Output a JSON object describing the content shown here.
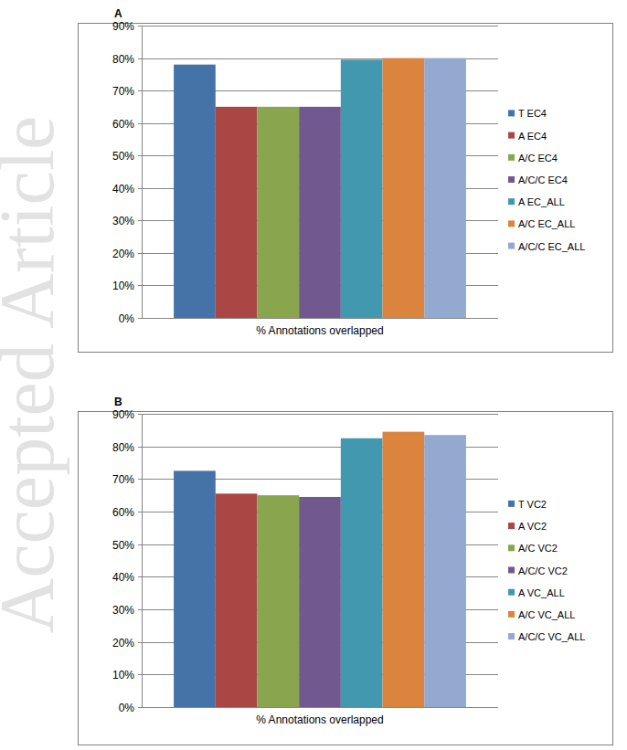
{
  "watermark": "Accepted Article",
  "chart_data": [
    {
      "type": "bar",
      "title": "A",
      "categories": [
        "% Annotations overlapped"
      ],
      "series": [
        {
          "name": "T EC4",
          "color": "#4572A7",
          "values": [
            78
          ]
        },
        {
          "name": "A EC4",
          "color": "#AA4643",
          "values": [
            65
          ]
        },
        {
          "name": "A/C EC4",
          "color": "#89A54E",
          "values": [
            65
          ]
        },
        {
          "name": "A/C/C EC4",
          "color": "#71588F",
          "values": [
            65
          ]
        },
        {
          "name": "A EC_ALL",
          "color": "#4198AF",
          "values": [
            79.5
          ]
        },
        {
          "name": "A/C EC_ALL",
          "color": "#DB843D",
          "values": [
            80
          ]
        },
        {
          "name": "A/C/C EC_ALL",
          "color": "#93A9CF",
          "values": [
            80
          ]
        }
      ],
      "ylim": [
        0,
        90
      ],
      "yticks": [
        {
          "value": 0,
          "label": "0%"
        },
        {
          "value": 10,
          "label": "10%"
        },
        {
          "value": 20,
          "label": "20%"
        },
        {
          "value": 30,
          "label": "30%"
        },
        {
          "value": 40,
          "label": "40%"
        },
        {
          "value": 50,
          "label": "50%"
        },
        {
          "value": 60,
          "label": "60%"
        },
        {
          "value": 70,
          "label": "70%"
        },
        {
          "value": 80,
          "label": "80%"
        },
        {
          "value": 90,
          "label": "90%"
        }
      ],
      "grid": true,
      "legend": "right"
    },
    {
      "type": "bar",
      "title": "B",
      "categories": [
        "% Annotations overlapped"
      ],
      "series": [
        {
          "name": "T VC2",
          "color": "#4572A7",
          "values": [
            72.5
          ]
        },
        {
          "name": "A VC2",
          "color": "#AA4643",
          "values": [
            65.5
          ]
        },
        {
          "name": "A/C VC2",
          "color": "#89A54E",
          "values": [
            65
          ]
        },
        {
          "name": "A/C/C VC2",
          "color": "#71588F",
          "values": [
            64.5
          ]
        },
        {
          "name": "A VC_ALL",
          "color": "#4198AF",
          "values": [
            82.5
          ]
        },
        {
          "name": "A/C VC_ALL",
          "color": "#DB843D",
          "values": [
            84.5
          ]
        },
        {
          "name": "A/C/C VC_ALL",
          "color": "#93A9CF",
          "values": [
            83.5
          ]
        }
      ],
      "ylim": [
        0,
        90
      ],
      "yticks": [
        {
          "value": 0,
          "label": "0%"
        },
        {
          "value": 10,
          "label": "10%"
        },
        {
          "value": 20,
          "label": "20%"
        },
        {
          "value": 30,
          "label": "30%"
        },
        {
          "value": 40,
          "label": "40%"
        },
        {
          "value": 50,
          "label": "50%"
        },
        {
          "value": 60,
          "label": "60%"
        },
        {
          "value": 70,
          "label": "70%"
        },
        {
          "value": 80,
          "label": "80%"
        },
        {
          "value": 90,
          "label": "90%"
        }
      ],
      "grid": true,
      "legend": "right"
    }
  ]
}
